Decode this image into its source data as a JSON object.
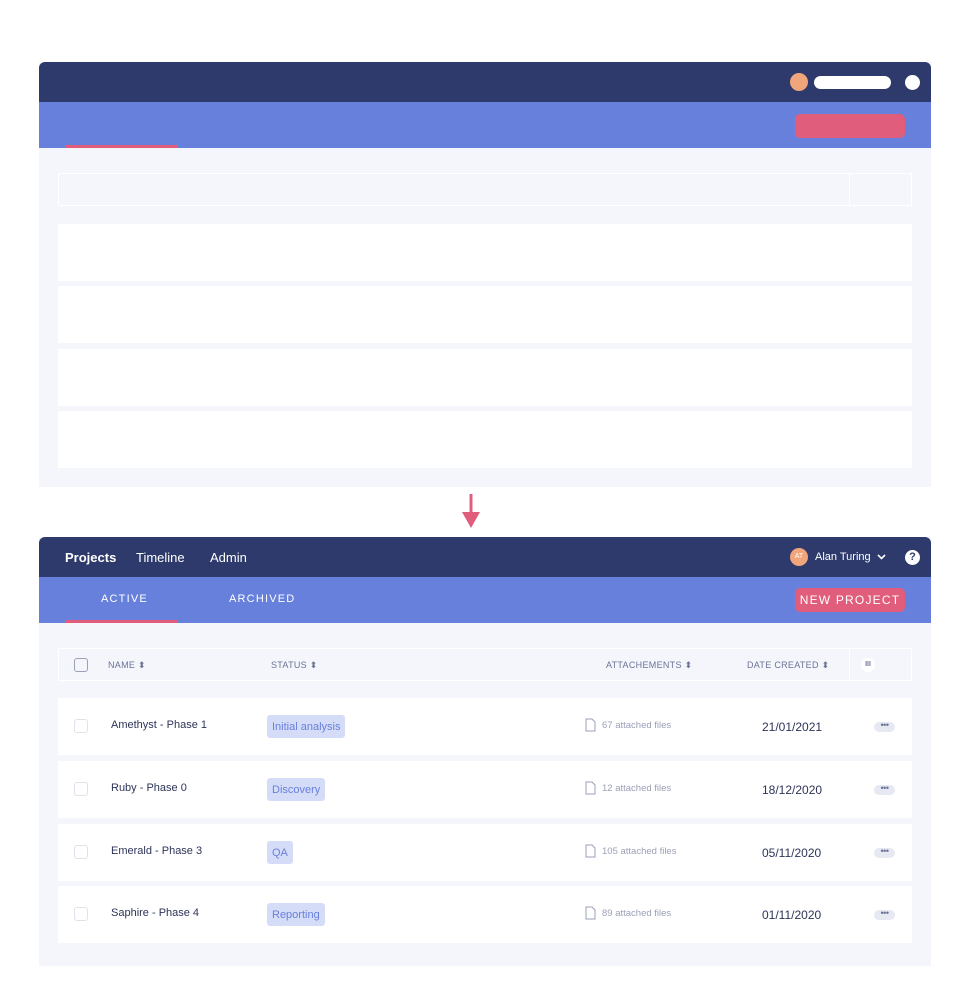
{
  "nav": {
    "links": [
      "Projects",
      "Timeline",
      "Admin"
    ],
    "user_initials": "AT",
    "user_name": "Alan Turing",
    "help": "?"
  },
  "subnav": {
    "tabs": [
      "ACTIVE",
      "ARCHIVED"
    ],
    "new_project": "NEW PROJECT"
  },
  "table": {
    "headers": [
      "NAME",
      "STATUS",
      "ATTACHEMENTS",
      "DATE CREATED"
    ],
    "rows": [
      {
        "name": "Amethyst - Phase 1",
        "status": "Initial analysis",
        "attachments": "67 attached files",
        "date": "21/01/2021"
      },
      {
        "name": "Ruby - Phase 0",
        "status": "Discovery",
        "attachments": "12 attached files",
        "date": "18/12/2020"
      },
      {
        "name": "Emerald - Phase 3",
        "status": "QA",
        "attachments": "105 attached files",
        "date": "05/11/2020"
      },
      {
        "name": "Saphire - Phase 4",
        "status": "Reporting",
        "attachments": "89 attached files",
        "date": "01/11/2020"
      }
    ]
  },
  "colors": {
    "navbar": "#2d3a6b",
    "subnav": "#6680dc",
    "accent": "#e05d7c",
    "badge_bg": "#d4dcf7"
  }
}
